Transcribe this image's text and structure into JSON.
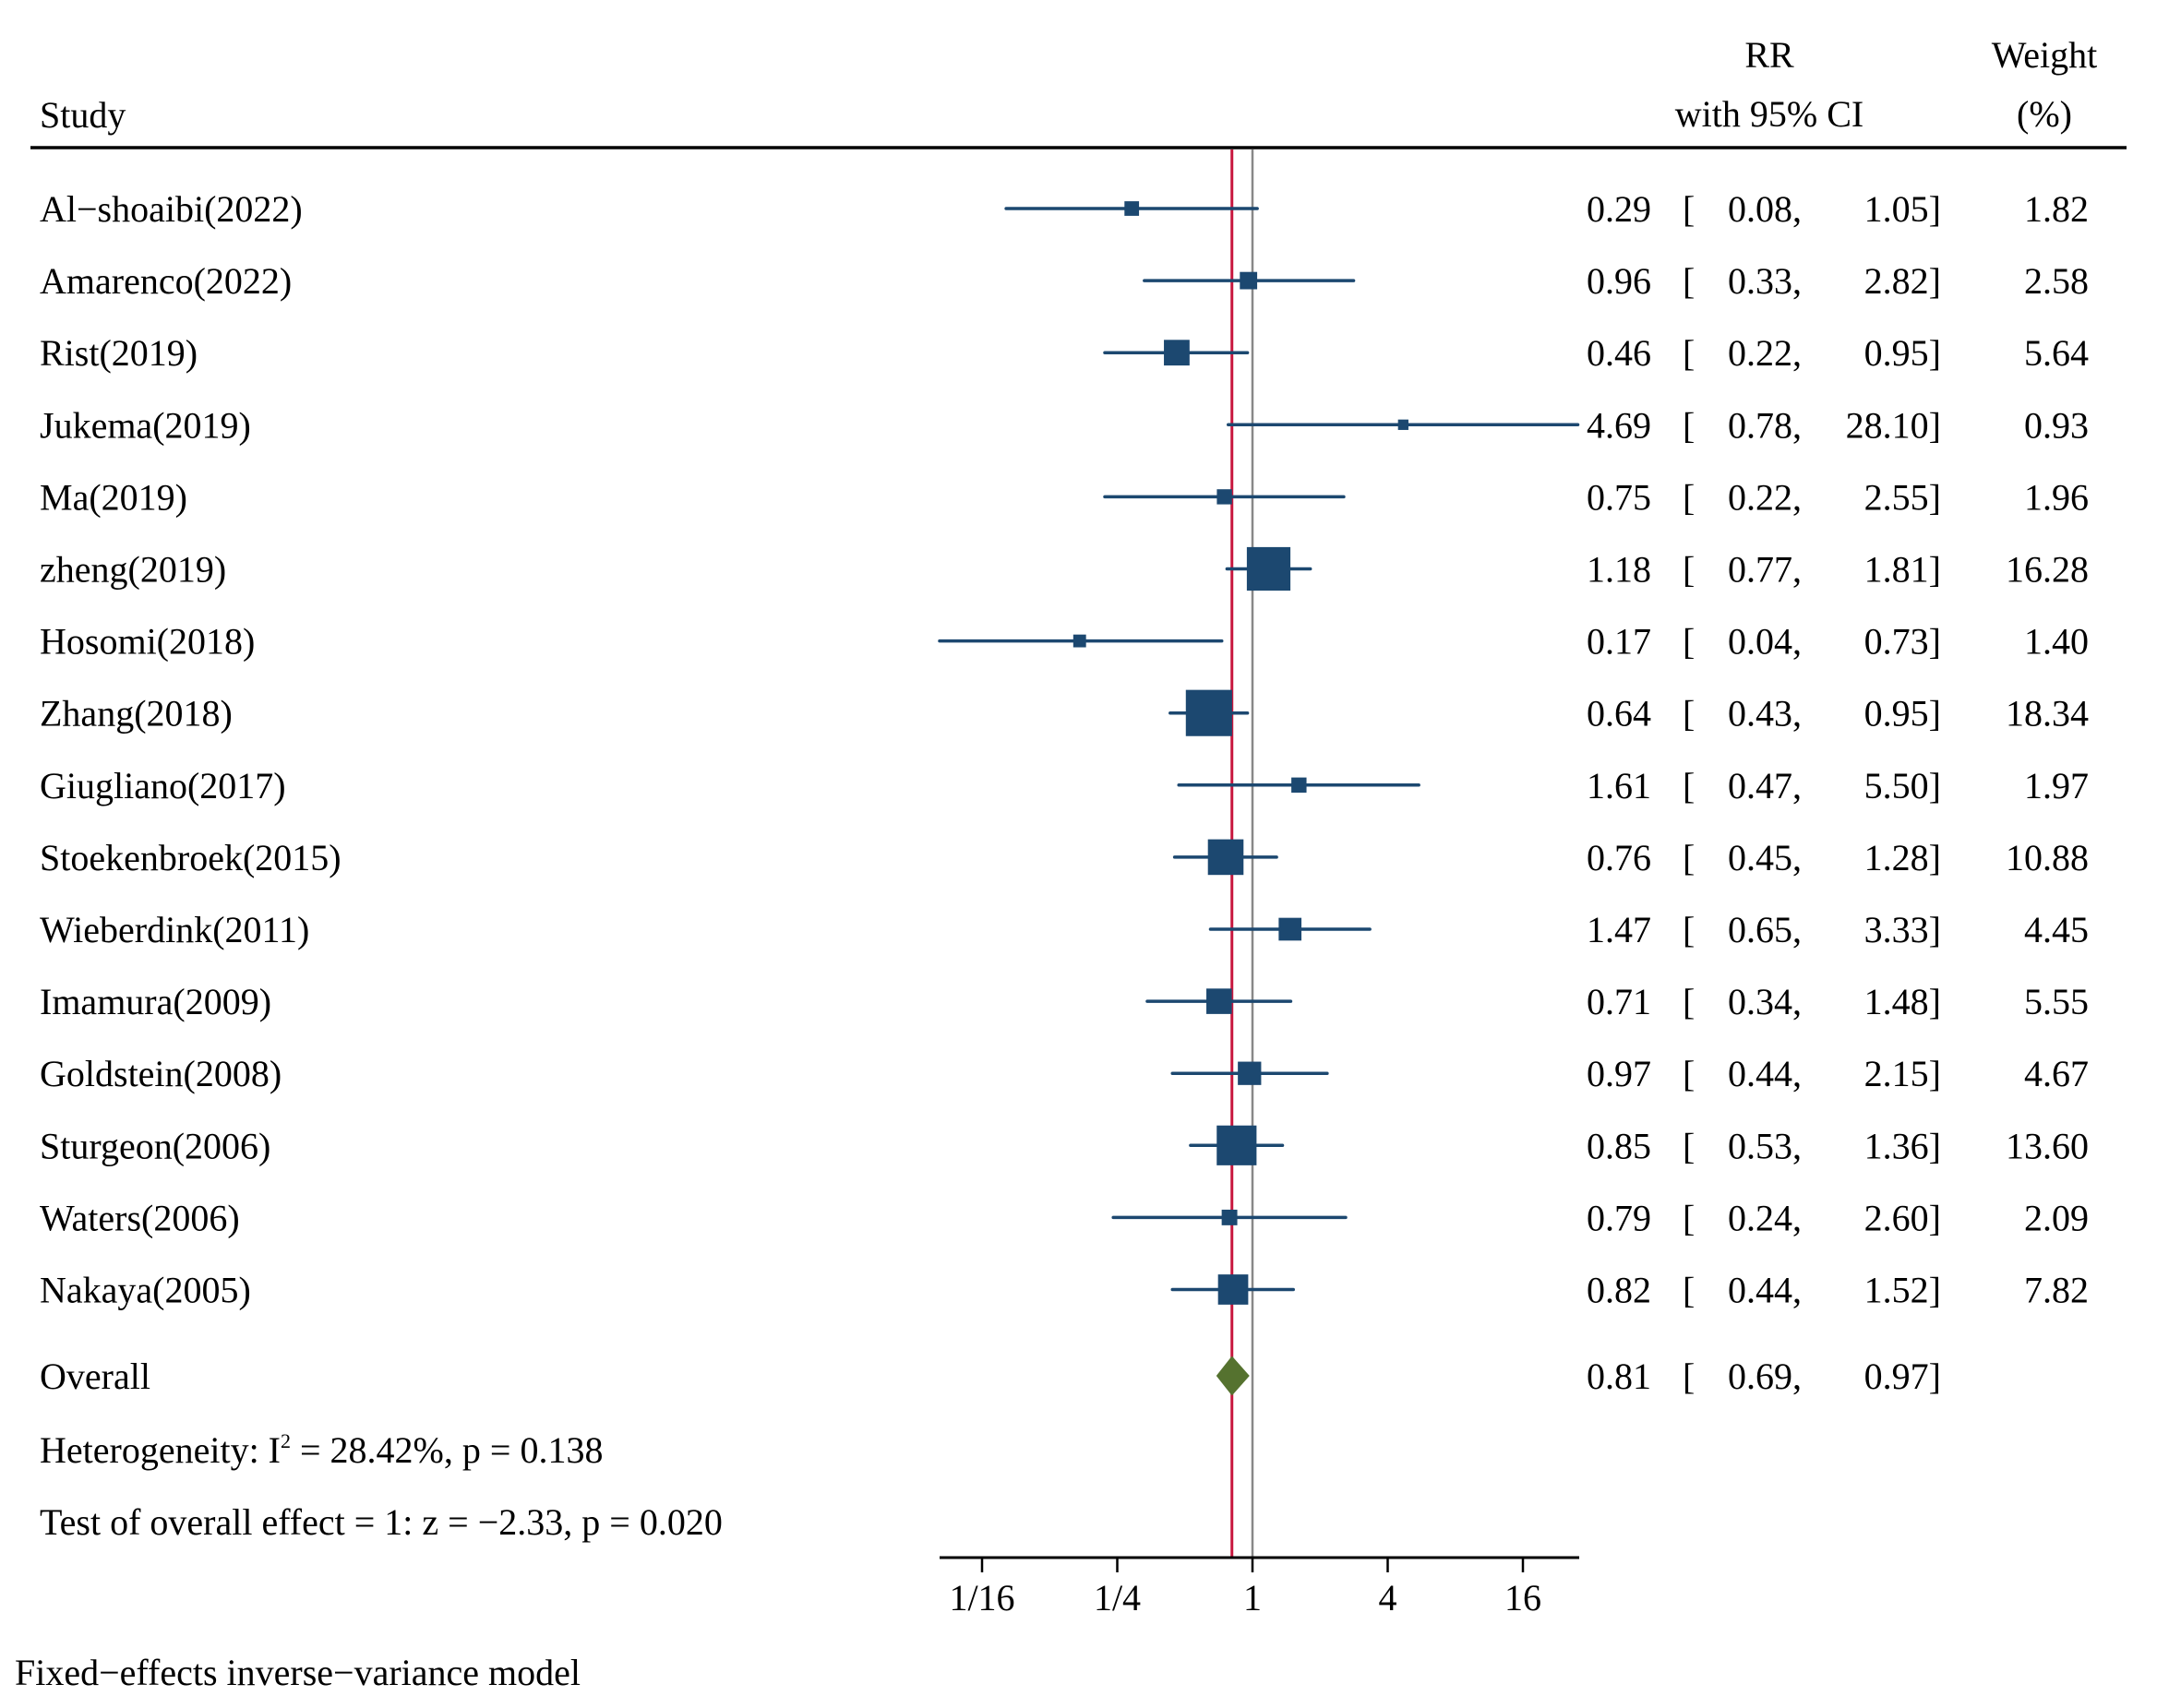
{
  "chart_data": {
    "type": "forest",
    "header": {
      "study": "Study",
      "effect_line1": "RR",
      "effect_line2": "with 95% CI",
      "weight_line1": "Weight",
      "weight_line2": "(%)"
    },
    "x_scale": "log",
    "xlim": [
      0.0488,
      17.5
    ],
    "x_ticks": [
      {
        "value": 0.0625,
        "label": "1/16"
      },
      {
        "value": 0.25,
        "label": "1/4"
      },
      {
        "value": 1,
        "label": "1"
      },
      {
        "value": 4,
        "label": "4"
      },
      {
        "value": 16,
        "label": "16"
      }
    ],
    "null_line": 1,
    "studies": [
      {
        "name": "Al−shoaibi(2022)",
        "rr": 0.29,
        "lo": 0.08,
        "hi": 1.05,
        "weight": 1.82,
        "rr_text": "0.29",
        "lo_text": "0.08,",
        "hi_text": "1.05]",
        "weight_text": "1.82"
      },
      {
        "name": "Amarenco(2022)",
        "rr": 0.96,
        "lo": 0.33,
        "hi": 2.82,
        "weight": 2.58,
        "rr_text": "0.96",
        "lo_text": "0.33,",
        "hi_text": "2.82]",
        "weight_text": "2.58"
      },
      {
        "name": "Rist(2019)",
        "rr": 0.46,
        "lo": 0.22,
        "hi": 0.95,
        "weight": 5.64,
        "rr_text": "0.46",
        "lo_text": "0.22,",
        "hi_text": "0.95]",
        "weight_text": "5.64"
      },
      {
        "name": "Jukema(2019)",
        "rr": 4.69,
        "lo": 0.78,
        "hi": 28.1,
        "weight": 0.93,
        "rr_text": "4.69",
        "lo_text": "0.78,",
        "hi_text": "28.10]",
        "weight_text": "0.93"
      },
      {
        "name": "Ma(2019)",
        "rr": 0.75,
        "lo": 0.22,
        "hi": 2.55,
        "weight": 1.96,
        "rr_text": "0.75",
        "lo_text": "0.22,",
        "hi_text": "2.55]",
        "weight_text": "1.96"
      },
      {
        "name": "zheng(2019)",
        "rr": 1.18,
        "lo": 0.77,
        "hi": 1.81,
        "weight": 16.28,
        "rr_text": "1.18",
        "lo_text": "0.77,",
        "hi_text": "1.81]",
        "weight_text": "16.28"
      },
      {
        "name": "Hosomi(2018)",
        "rr": 0.17,
        "lo": 0.04,
        "hi": 0.73,
        "weight": 1.4,
        "rr_text": "0.17",
        "lo_text": "0.04,",
        "hi_text": "0.73]",
        "weight_text": "1.40"
      },
      {
        "name": "Zhang(2018)",
        "rr": 0.64,
        "lo": 0.43,
        "hi": 0.95,
        "weight": 18.34,
        "rr_text": "0.64",
        "lo_text": "0.43,",
        "hi_text": "0.95]",
        "weight_text": "18.34"
      },
      {
        "name": "Giugliano(2017)",
        "rr": 1.61,
        "lo": 0.47,
        "hi": 5.5,
        "weight": 1.97,
        "rr_text": "1.61",
        "lo_text": "0.47,",
        "hi_text": "5.50]",
        "weight_text": "1.97"
      },
      {
        "name": "Stoekenbroek(2015)",
        "rr": 0.76,
        "lo": 0.45,
        "hi": 1.28,
        "weight": 10.88,
        "rr_text": "0.76",
        "lo_text": "0.45,",
        "hi_text": "1.28]",
        "weight_text": "10.88"
      },
      {
        "name": "Wieberdink(2011)",
        "rr": 1.47,
        "lo": 0.65,
        "hi": 3.33,
        "weight": 4.45,
        "rr_text": "1.47",
        "lo_text": "0.65,",
        "hi_text": "3.33]",
        "weight_text": "4.45"
      },
      {
        "name": "Imamura(2009)",
        "rr": 0.71,
        "lo": 0.34,
        "hi": 1.48,
        "weight": 5.55,
        "rr_text": "0.71",
        "lo_text": "0.34,",
        "hi_text": "1.48]",
        "weight_text": "5.55"
      },
      {
        "name": "Goldstein(2008)",
        "rr": 0.97,
        "lo": 0.44,
        "hi": 2.15,
        "weight": 4.67,
        "rr_text": "0.97",
        "lo_text": "0.44,",
        "hi_text": "2.15]",
        "weight_text": "4.67"
      },
      {
        "name": "Sturgeon(2006)",
        "rr": 0.85,
        "lo": 0.53,
        "hi": 1.36,
        "weight": 13.6,
        "rr_text": "0.85",
        "lo_text": "0.53,",
        "hi_text": "1.36]",
        "weight_text": "13.60"
      },
      {
        "name": "Waters(2006)",
        "rr": 0.79,
        "lo": 0.24,
        "hi": 2.6,
        "weight": 2.09,
        "rr_text": "0.79",
        "lo_text": "0.24,",
        "hi_text": "2.60]",
        "weight_text": "2.09"
      },
      {
        "name": "Nakaya(2005)",
        "rr": 0.82,
        "lo": 0.44,
        "hi": 1.52,
        "weight": 7.82,
        "rr_text": "0.82",
        "lo_text": "0.44,",
        "hi_text": "1.52]",
        "weight_text": "7.82"
      }
    ],
    "overall": {
      "name": "Overall",
      "rr": 0.81,
      "lo": 0.69,
      "hi": 0.97,
      "rr_text": "0.81",
      "lo_text": "0.69,",
      "hi_text": "0.97]"
    },
    "heterogeneity": {
      "prefix": "Heterogeneity: I",
      "sup": "2",
      "suffix": " = 28.42%, p = 0.138"
    },
    "overall_test": "Test of overall effect = 1: z = −2.33, p = 0.020",
    "footer": "Fixed−effects inverse−variance model",
    "colors": {
      "marker": "#1c4870",
      "ci_line": "#1c4870",
      "overall_line": "#c8183f",
      "null_line": "#888888",
      "diamond": "#55722f"
    }
  }
}
